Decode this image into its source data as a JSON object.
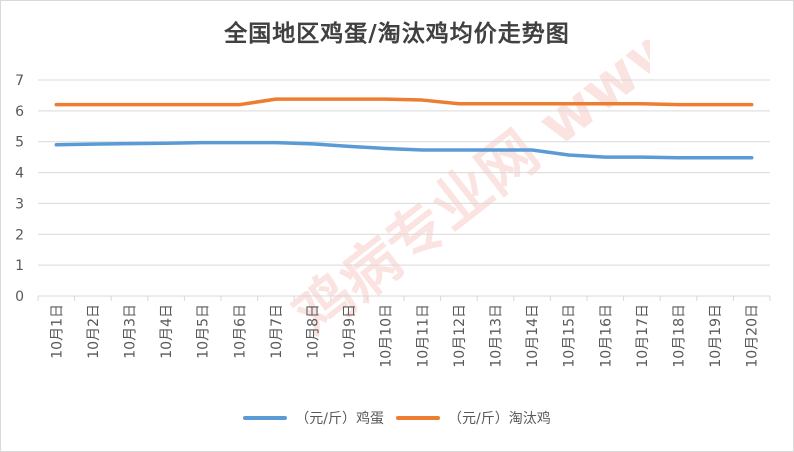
{
  "chart_data": {
    "type": "line",
    "title": "全国地区鸡蛋/淘汰鸡均价走势图",
    "categories": [
      "10月1日",
      "10月2日",
      "10月3日",
      "10月4日",
      "10月5日",
      "10月6日",
      "10月7日",
      "10月8日",
      "10月9日",
      "10月10日",
      "10月11日",
      "10月12日",
      "10月13日",
      "10月14日",
      "10月15日",
      "10月16日",
      "10月17日",
      "10月18日",
      "10月19日",
      "10月20日"
    ],
    "series": [
      {
        "name": "（元/斤）鸡蛋",
        "color": "#5b9bd5",
        "values": [
          4.9,
          4.92,
          4.94,
          4.95,
          4.97,
          4.97,
          4.97,
          4.93,
          4.85,
          4.78,
          4.73,
          4.73,
          4.73,
          4.73,
          4.57,
          4.5,
          4.5,
          4.48,
          4.48,
          4.48
        ]
      },
      {
        "name": "（元/斤）淘汰鸡",
        "color": "#ed7d31",
        "values": [
          6.2,
          6.2,
          6.2,
          6.2,
          6.2,
          6.2,
          6.38,
          6.38,
          6.38,
          6.38,
          6.35,
          6.23,
          6.23,
          6.23,
          6.23,
          6.23,
          6.23,
          6.2,
          6.2,
          6.2
        ]
      }
    ],
    "ylim": [
      0,
      7
    ],
    "yticks": [
      "0",
      "1",
      "2",
      "3",
      "4",
      "5",
      "6",
      "7"
    ],
    "xlabel": "",
    "ylabel": "",
    "grid": true,
    "legend": "bottom",
    "watermark_text": "鸡病专业网 www.jbzyw.com"
  }
}
